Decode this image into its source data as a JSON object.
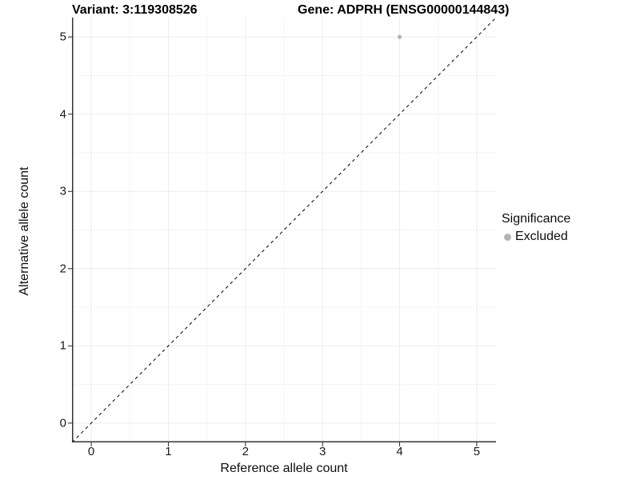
{
  "header": {
    "variant_title": "Variant: 3:119308526",
    "gene_title": "Gene: ADPRH (ENSG00000144843)"
  },
  "chart_data": {
    "type": "scatter",
    "title": "Variant: 3:119308526 / Gene: ADPRH (ENSG00000144843)",
    "xlabel": "Reference allele count",
    "ylabel": "Alternative allele count",
    "xlim": [
      -0.25,
      5.25
    ],
    "ylim": [
      -0.25,
      5.25
    ],
    "x_ticks": [
      0,
      1,
      2,
      3,
      4,
      5
    ],
    "y_ticks": [
      0,
      1,
      2,
      3,
      4,
      5
    ],
    "x_minor_ticks": [
      0.5,
      1.5,
      2.5,
      3.5,
      4.5
    ],
    "y_minor_ticks": [
      0.5,
      1.5,
      2.5,
      3.5,
      4.5
    ],
    "grid": "on",
    "series": [
      {
        "name": "Excluded",
        "color": "#b4b4b4",
        "points": [
          [
            4,
            5
          ]
        ]
      }
    ],
    "identity_line": {
      "style": "dashed",
      "color": "#000000",
      "from": [
        -0.25,
        -0.25
      ],
      "to": [
        5.25,
        5.25
      ]
    },
    "legend": {
      "title": "Significance",
      "position": "right",
      "items": [
        {
          "label": "Excluded",
          "color": "#b4b4b4"
        }
      ]
    }
  },
  "colors": {
    "background": "#ffffff",
    "grid_major": "#ebebeb",
    "grid_minor": "#f5f5f5",
    "axis_line": "#333333",
    "tick_mark": "#262626",
    "tick_text": "#1a1a1a",
    "title_text": "#000000"
  }
}
